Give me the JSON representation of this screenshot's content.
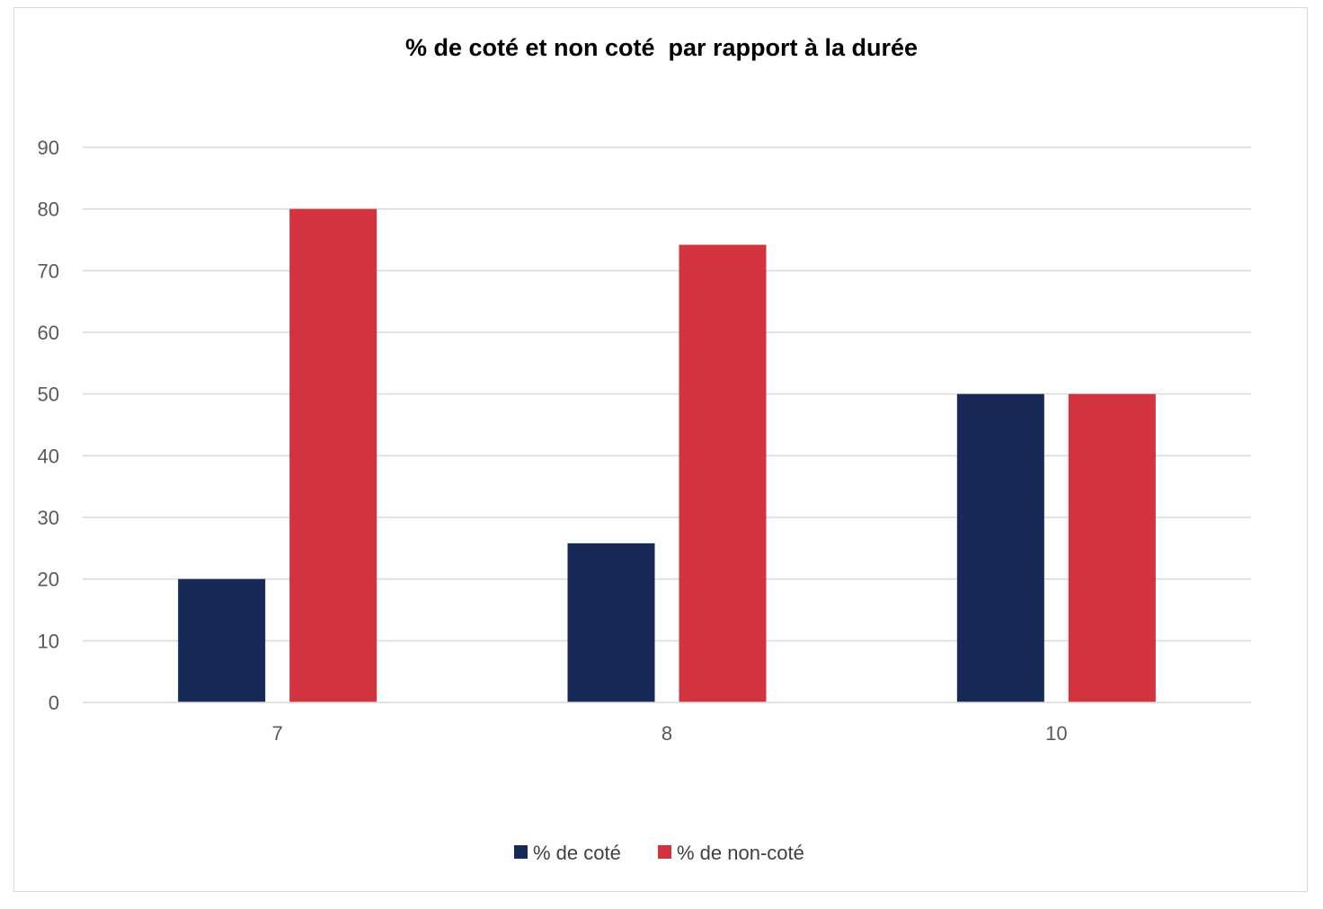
{
  "chart_data": {
    "type": "bar",
    "title": "% de coté et non coté  par rapport à la durée",
    "xlabel": "",
    "ylabel": "",
    "categories": [
      "7",
      "8",
      "10"
    ],
    "series": [
      {
        "name": "% de coté",
        "values": [
          20,
          25.8,
          50
        ],
        "color": "#172a57"
      },
      {
        "name": "% de non-coté",
        "values": [
          80,
          74.2,
          50
        ],
        "color": "#d3333f"
      }
    ],
    "ylim": [
      0,
      90
    ],
    "yticks": [
      "0",
      "10",
      "20",
      "30",
      "40",
      "50",
      "60",
      "70",
      "80",
      "90"
    ],
    "grid": true,
    "legend_position": "bottom"
  }
}
